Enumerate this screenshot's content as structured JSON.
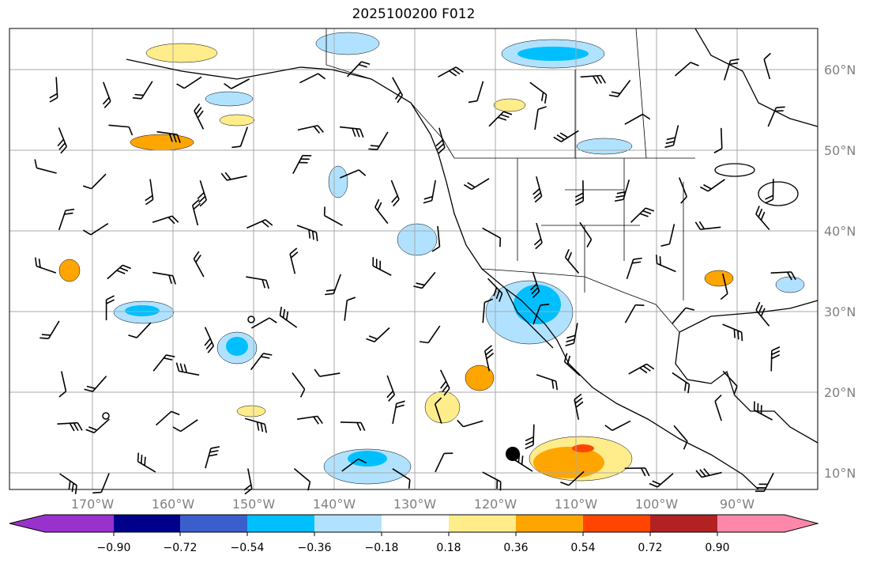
{
  "title": "2025100200 F012",
  "map": {
    "lon_labels": [
      "170°W",
      "160°W",
      "150°W",
      "140°W",
      "130°W",
      "120°W",
      "110°W",
      "100°W",
      "90°W"
    ],
    "lon_values": [
      -170,
      -160,
      -150,
      -140,
      -130,
      -120,
      -110,
      -100,
      -90
    ],
    "lat_labels": [
      "60°N",
      "50°N",
      "40°N",
      "30°N",
      "20°N",
      "10°N"
    ],
    "lat_values": [
      60,
      50,
      40,
      30,
      20,
      10
    ],
    "extent": {
      "lon": [
        -180,
        -80
      ],
      "lat": [
        8,
        65
      ]
    }
  },
  "colorbar": {
    "ticks": [
      "−0.90",
      "−0.72",
      "−0.54",
      "−0.36",
      "−0.18",
      "0.18",
      "0.36",
      "0.54",
      "0.72",
      "0.90"
    ],
    "colors": [
      "#9932cc",
      "#00008b",
      "#3a5fcd",
      "#00bfff",
      "#b0e2ff",
      "#ffffff",
      "#ffec8b",
      "#ffa500",
      "#ff4500",
      "#b22222",
      "#ff88aa"
    ]
  }
}
